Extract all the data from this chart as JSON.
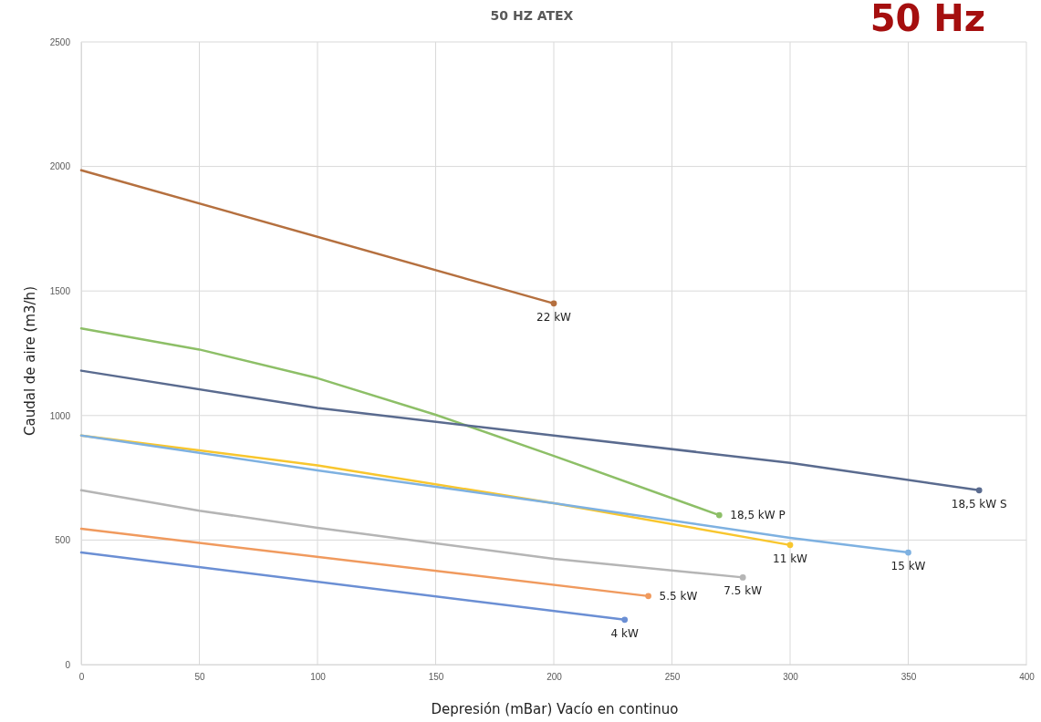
{
  "chart_data": {
    "type": "line",
    "title": "50 HZ ATEX",
    "xlabel": "Depresión (mBar) Vacío en continuo",
    "ylabel": "Caudal de aire (m3/h)",
    "annotations": [
      "50 Hz"
    ],
    "xlim": [
      0,
      400
    ],
    "xticks": [
      0,
      50,
      100,
      150,
      200,
      250,
      300,
      350,
      400
    ],
    "ylim": [
      0,
      2500
    ],
    "yticks": [
      0,
      500,
      1000,
      1500,
      2000,
      2500
    ],
    "grid": true,
    "series": [
      {
        "name": "22  kW",
        "color": "#b5703f",
        "x": [
          0,
          200
        ],
        "values": [
          1985,
          1450
        ]
      },
      {
        "name": "18,5 kW P",
        "color": "#8dbf67",
        "x": [
          0,
          50,
          100,
          150,
          200,
          270
        ],
        "values": [
          1350,
          1265,
          1150,
          1003,
          838,
          600
        ]
      },
      {
        "name": "18,5 kW S",
        "color": "#5a6b8f",
        "x": [
          0,
          100,
          200,
          300,
          380
        ],
        "values": [
          1180,
          1030,
          920,
          810,
          700
        ]
      },
      {
        "name": "11 kW",
        "color": "#f8c62e",
        "x": [
          0,
          100,
          200,
          300
        ],
        "values": [
          920,
          800,
          648,
          480
        ]
      },
      {
        "name": "15 kW",
        "color": "#7eb1e1",
        "x": [
          0,
          100,
          200,
          300,
          350
        ],
        "values": [
          920,
          780,
          648,
          509,
          450
        ]
      },
      {
        "name": "7.5 kW",
        "color": "#b5b5b5",
        "x": [
          0,
          50,
          100,
          200,
          280
        ],
        "values": [
          700,
          618,
          549,
          425,
          350
        ]
      },
      {
        "name": "5.5 kW",
        "color": "#f09a5e",
        "x": [
          0,
          240
        ],
        "values": [
          545,
          275
        ]
      },
      {
        "name": "4 kW",
        "color": "#6b8fd4",
        "x": [
          0,
          230
        ],
        "values": [
          450,
          180
        ]
      }
    ]
  }
}
